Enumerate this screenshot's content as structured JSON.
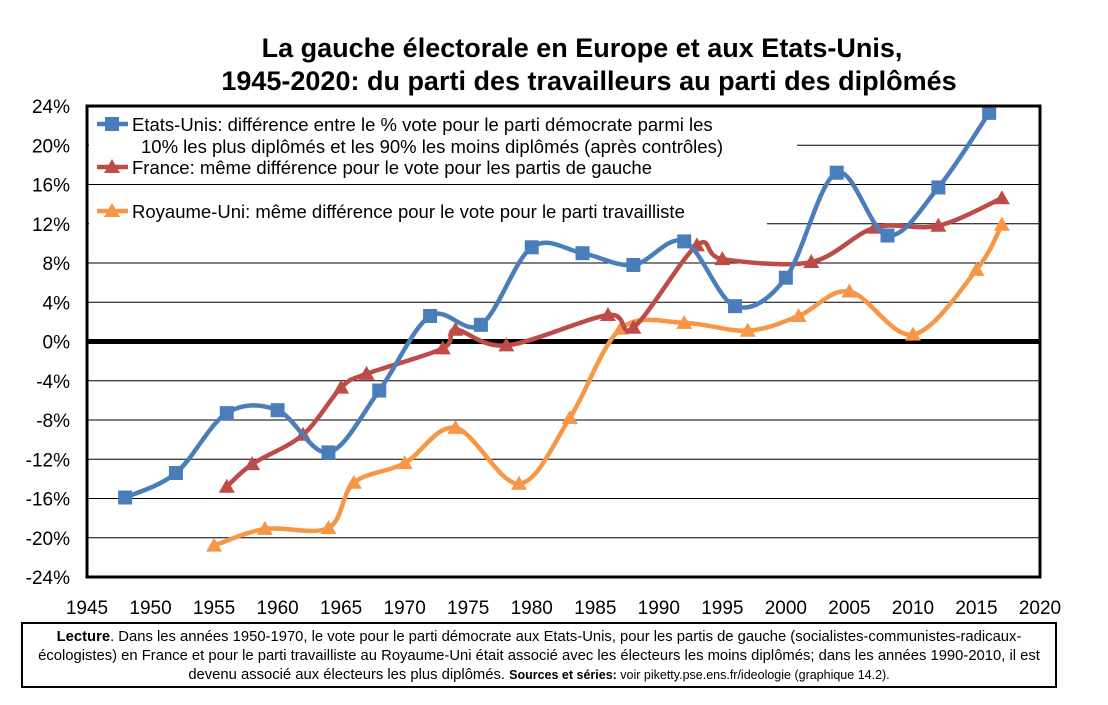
{
  "chart_data": {
    "type": "line",
    "title": [
      "La gauche électorale en Europe et aux Etats-Unis,",
      "1945-2020:  du parti des travailleurs au parti des diplômés"
    ],
    "xlabel": "",
    "ylabel": "",
    "xlim": [
      1945,
      2020
    ],
    "ylim": [
      -24,
      24
    ],
    "x_ticks": [
      "1945",
      "1950",
      "1955",
      "1960",
      "1965",
      "1970",
      "1975",
      "1980",
      "1985",
      "1990",
      "1995",
      "2000",
      "2005",
      "2010",
      "2015",
      "2020"
    ],
    "y_ticks": [
      "24%",
      "20%",
      "16%",
      "12%",
      "8%",
      "4%",
      "0%",
      "-4%",
      "-8%",
      "-12%",
      "-16%",
      "-20%",
      "-24%"
    ],
    "grid": "horizontal",
    "zero_line": true,
    "legend_position": "top-left",
    "series": [
      {
        "name": "Etats-Unis: différence entre le % vote pour le parti démocrate parmi les 10% les plus diplômés et les 90% les moins diplômés (après contrôles)",
        "legend_lines": [
          "Etats-Unis: différence entre le % vote pour le parti démocrate parmi les",
          "10% les plus diplômés et les 90% les moins diplômés (après contrôles)"
        ],
        "color": "#4A7EBB",
        "marker": "square",
        "points": [
          [
            1948,
            -15.9
          ],
          [
            1952,
            -13.4
          ],
          [
            1956,
            -7.3
          ],
          [
            1960,
            -7.0
          ],
          [
            1964,
            -11.3
          ],
          [
            1968,
            -5.0
          ],
          [
            1972,
            2.6
          ],
          [
            1976,
            1.7
          ],
          [
            1980,
            9.6
          ],
          [
            1984,
            9.0
          ],
          [
            1988,
            7.8
          ],
          [
            1992,
            10.2
          ],
          [
            1996,
            3.6
          ],
          [
            2000,
            6.5
          ],
          [
            2004,
            17.2
          ],
          [
            2008,
            10.8
          ],
          [
            2012,
            15.7
          ],
          [
            2016,
            23.3
          ]
        ]
      },
      {
        "name": "France: même différence pour le vote pour les partis de gauche",
        "legend_lines": [
          "France: même différence pour le vote pour les partis de gauche"
        ],
        "color": "#BE4B48",
        "marker": "triangle",
        "points": [
          [
            1956,
            -14.8
          ],
          [
            1958,
            -12.5
          ],
          [
            1962,
            -9.5
          ],
          [
            1965,
            -4.7
          ],
          [
            1967,
            -3.3
          ],
          [
            1973,
            -0.7
          ],
          [
            1974,
            1.2
          ],
          [
            1978,
            -0.4
          ],
          [
            1986,
            2.7
          ],
          [
            1988,
            1.4
          ],
          [
            1993,
            9.8
          ],
          [
            1995,
            8.4
          ],
          [
            2002,
            8.1
          ],
          [
            2007,
            11.6
          ],
          [
            2012,
            11.8
          ],
          [
            2017,
            14.6
          ]
        ]
      },
      {
        "name": "Royaume-Uni: même différence pour le vote pour le parti travailliste",
        "legend_lines": [
          "Royaume-Uni: même différence pour le vote pour le parti travailliste"
        ],
        "color": "#F79646",
        "marker": "triangle",
        "points": [
          [
            1955,
            -20.8
          ],
          [
            1959,
            -19.1
          ],
          [
            1964,
            -19.0
          ],
          [
            1966,
            -14.4
          ],
          [
            1970,
            -12.4
          ],
          [
            1974,
            -8.8
          ],
          [
            1979,
            -14.5
          ],
          [
            1983,
            -7.8
          ],
          [
            1987,
            1.3
          ],
          [
            1992,
            1.9
          ],
          [
            1997,
            1.1
          ],
          [
            2001,
            2.6
          ],
          [
            2005,
            5.1
          ],
          [
            2010,
            0.7
          ],
          [
            2015,
            7.3
          ],
          [
            2017,
            11.9
          ]
        ]
      }
    ]
  },
  "note": {
    "lead": "Lecture",
    "text": ". Dans les années 1950-1970, le vote pour le parti démocrate aux Etats-Unis, pour les partis de gauche (socialistes-communistes-radicaux-écologistes) en France et pour le parti travailliste au Royaume-Uni était associé avec les électeurs les moins diplômés; dans les années 1990-2010, il est devenu associé aux électeurs les plus diplômés. ",
    "sources_label": "Sources et séries:",
    "sources_text": " voir piketty.pse.ens.fr/ideologie (graphique 14.2)."
  }
}
